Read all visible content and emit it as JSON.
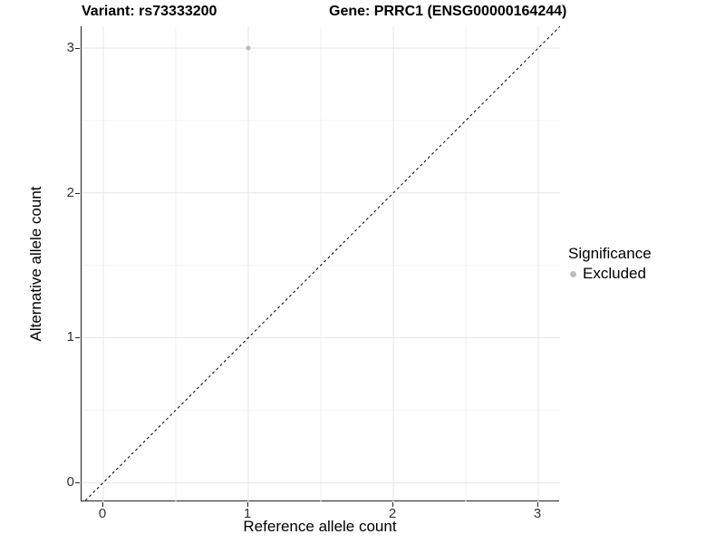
{
  "chart_data": {
    "type": "scatter",
    "title_left": "Variant: rs73333200",
    "title_right": "Gene: PRRC1 (ENSG00000164244)",
    "xlabel": "Reference allele count",
    "ylabel": "Alternative allele count",
    "xlim": [
      -0.15,
      3.15
    ],
    "ylim": [
      -0.13,
      3.15
    ],
    "x_ticks": [
      0,
      1,
      2,
      3
    ],
    "y_ticks": [
      0,
      1,
      2,
      3
    ],
    "x_minor_ticks": [
      0.5,
      1.5,
      2.5
    ],
    "y_minor_ticks": [
      0.5,
      1.5,
      2.5
    ],
    "grid": true,
    "series": [
      {
        "name": "Excluded",
        "color": "#bdbdbd",
        "points": [
          {
            "x": 1,
            "y": 3
          }
        ]
      }
    ],
    "reference_line": {
      "type": "identity",
      "style": "dashed",
      "color": "#000000",
      "from": [
        -0.15,
        -0.15
      ],
      "to": [
        3.15,
        3.15
      ]
    },
    "legend": {
      "title": "Significance",
      "position": "right",
      "entries": [
        {
          "label": "Excluded",
          "color": "#bdbdbd"
        }
      ]
    },
    "colors": {
      "background": "#ffffff",
      "grid_major": "#e6e6e6",
      "grid_minor": "#f2f2f2",
      "axis_line": "#222222",
      "tick_label": "#333333",
      "point": "#bdbdbd"
    }
  }
}
